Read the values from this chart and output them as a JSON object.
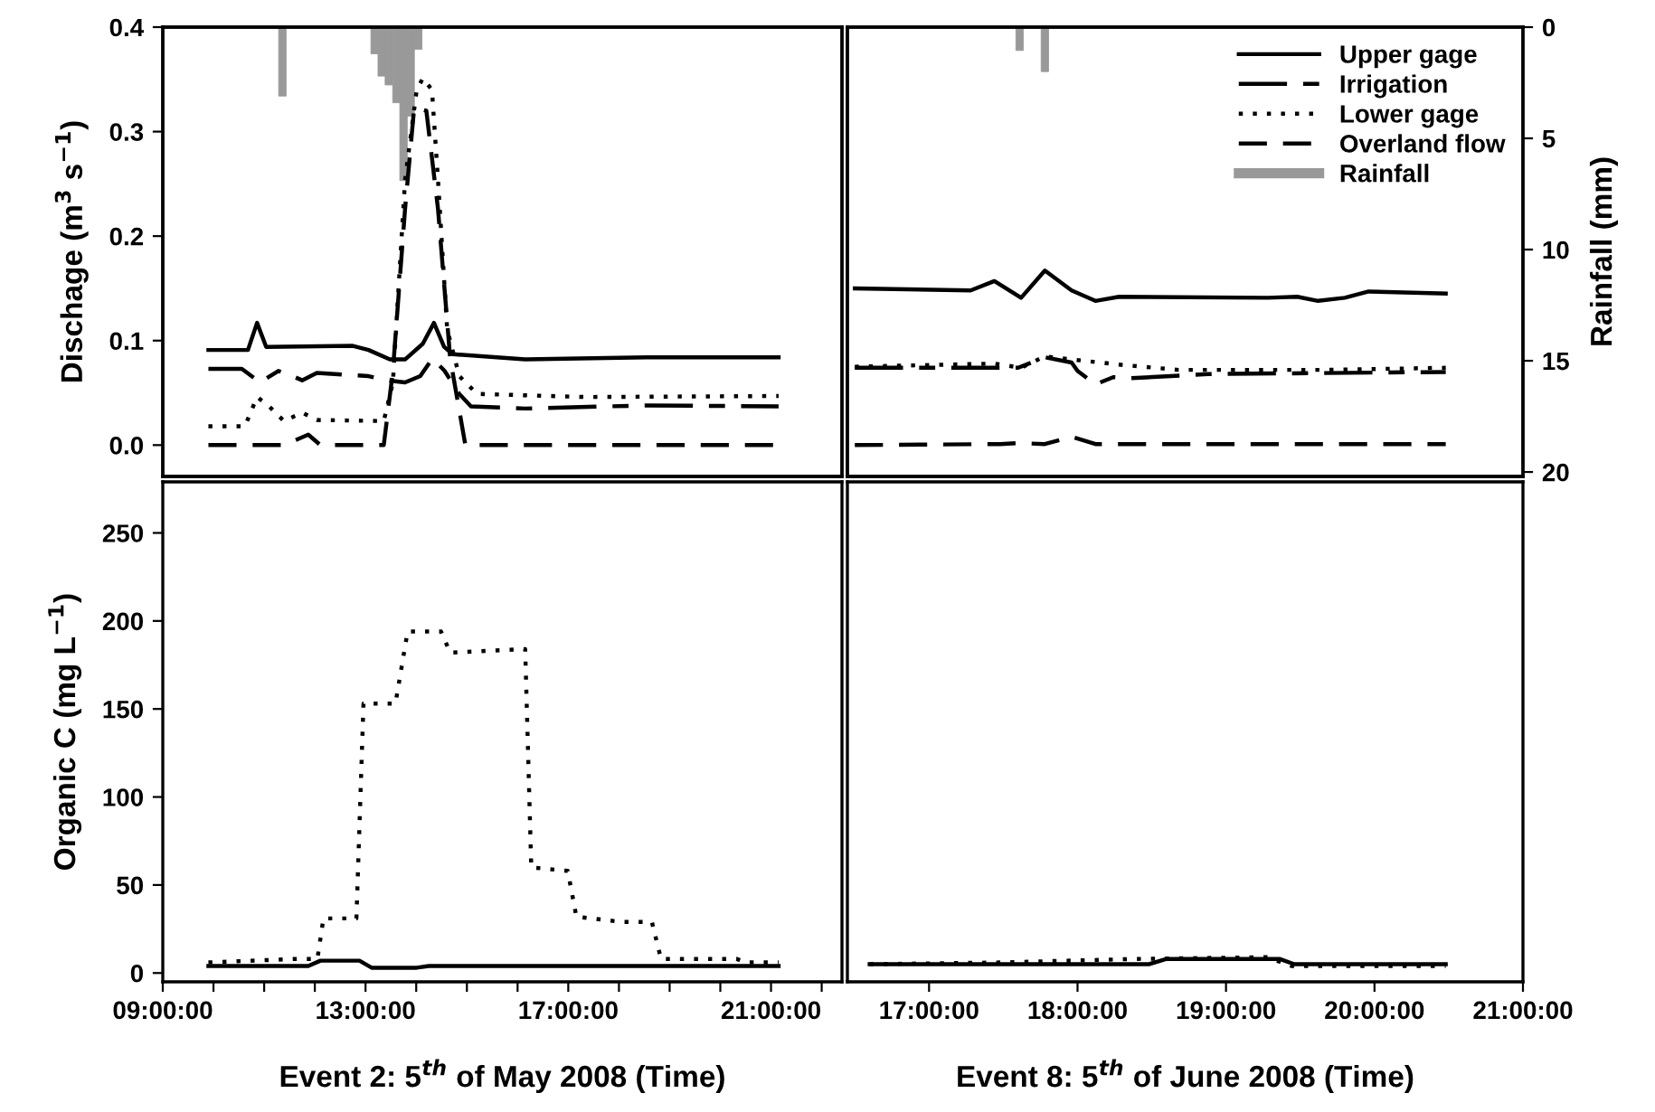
{
  "chart_data": [
    {
      "type": "line",
      "ylabel": "Dischage (m$^{3}$ s$^{−1}$)",
      "xlim": [
        9,
        22.4
      ],
      "ylim": [
        -0.03,
        0.4
      ],
      "yticks": [
        {
          "value": 0,
          "label": "0.0"
        },
        0.1,
        0.2,
        0.3,
        0.4
      ],
      "y2lim": [
        20.2,
        0
      ],
      "tick_labels": "y",
      "legend": false,
      "grid": false,
      "series": [
        {
          "color": "#000000",
          "line_style": "solid",
          "x": [
            9.9,
            10.68,
            10.86,
            11.04,
            12.75,
            13.06,
            13.48,
            13.78,
            14.13,
            14.35,
            14.55,
            14.72,
            16.15,
            18.54,
            21.15
          ],
          "values": [
            0.091,
            0.091,
            0.117,
            0.094,
            0.095,
            0.091,
            0.082,
            0.082,
            0.097,
            0.117,
            0.094,
            0.087,
            0.082,
            0.084,
            0.084
          ]
        },
        {
          "color": "#000000",
          "line_style": "dashdot",
          "x": [
            9.9,
            10.56,
            10.92,
            11.28,
            11.51,
            11.75,
            12.04,
            13.06,
            13.42,
            13.78,
            14.08,
            14.32,
            14.56,
            14.85,
            15.08,
            16.15,
            18.54,
            21.15
          ],
          "values": [
            0.073,
            0.073,
            0.06,
            0.071,
            0.067,
            0.062,
            0.069,
            0.066,
            0.062,
            0.06,
            0.066,
            0.083,
            0.071,
            0.049,
            0.037,
            0.035,
            0.038,
            0.037
          ]
        },
        {
          "color": "#000000",
          "line_style": "dotted",
          "x": [
            9.9,
            10.62,
            10.86,
            11.1,
            11.39,
            11.75,
            12.04,
            13.36,
            13.54,
            13.78,
            14.01,
            14.13,
            14.31,
            14.43,
            14.61,
            14.85,
            15.2,
            17.35,
            21.15
          ],
          "values": [
            0.018,
            0.018,
            0.046,
            0.037,
            0.023,
            0.031,
            0.024,
            0.023,
            0.06,
            0.254,
            0.34,
            0.351,
            0.34,
            0.254,
            0.111,
            0.066,
            0.049,
            0.046,
            0.047
          ]
        },
        {
          "color": "#000000",
          "line_style": "dashed",
          "x": [
            9.9,
            11.39,
            11.87,
            12.11,
            13.36,
            13.54,
            13.78,
            13.96,
            14.2,
            14.43,
            14.67,
            14.97,
            21.15
          ],
          "values": [
            0,
            0,
            0.01,
            0,
            0,
            0.071,
            0.226,
            0.323,
            0.32,
            0.226,
            0.083,
            0,
            0
          ]
        },
        {
          "type": "bar",
          "axis": "y2",
          "color": "#999999",
          "x": [
            11.36,
            13.18,
            13.32,
            13.46,
            13.61,
            13.75,
            13.89,
            14.04
          ],
          "values": [
            3.1,
            1.2,
            2.2,
            2.6,
            3.4,
            6.9,
            4.0,
            1.0
          ]
        }
      ]
    },
    {
      "type": "line",
      "y2label": "Rainfall (mm)",
      "xlim": [
        16.45,
        21
      ],
      "ylim": [
        -0.03,
        0.4
      ],
      "y2lim": [
        20.2,
        0
      ],
      "y2ticks": [
        0,
        5,
        10,
        15,
        20
      ],
      "tick_labels": "y2",
      "legend": "top right",
      "grid": false,
      "series": [
        {
          "name": "Upper gage",
          "color": "#000000",
          "line_style": "solid",
          "x": [
            16.5,
            17.28,
            17.44,
            17.62,
            17.78,
            17.96,
            18.12,
            18.28,
            19.28,
            19.48,
            19.62,
            19.8,
            19.96,
            20.48
          ],
          "values": [
            0.15,
            0.148,
            0.157,
            0.141,
            0.167,
            0.148,
            0.138,
            0.142,
            0.141,
            0.142,
            0.138,
            0.141,
            0.147,
            0.145
          ]
        },
        {
          "name": "Irrigation",
          "color": "#000000",
          "line_style": "dashdot",
          "x": [
            16.5,
            17.6,
            17.78,
            17.96,
            18.0,
            18.12,
            18.24,
            18.36,
            18.88,
            20.48
          ],
          "values": [
            0.074,
            0.074,
            0.084,
            0.079,
            0.071,
            0.058,
            0.065,
            0.064,
            0.068,
            0.07
          ]
        },
        {
          "name": "Lower gage",
          "color": "#000000",
          "line_style": "dotted",
          "x": [
            16.5,
            17.44,
            17.62,
            17.78,
            17.96,
            18.28,
            18.68,
            19.68,
            20.48
          ],
          "values": [
            0.075,
            0.078,
            0.074,
            0.085,
            0.082,
            0.077,
            0.072,
            0.072,
            0.074
          ]
        },
        {
          "name": "Overland flow",
          "color": "#000000",
          "line_style": "dashed",
          "x": [
            16.5,
            17.48,
            17.6,
            17.78,
            17.96,
            18.12,
            20.48
          ],
          "values": [
            0,
            0.001,
            0.002,
            0.001,
            0.008,
            0.001,
            0.001
          ]
        },
        {
          "type": "bar",
          "name": "Rainfall",
          "axis": "y2",
          "color": "#999999",
          "x": [
            17.61,
            17.78
          ],
          "values": [
            1.05,
            2.0
          ]
        }
      ]
    },
    {
      "type": "line",
      "ylabel": "Organic C (mg L$^{−1}$)",
      "xlabel": "Event 2: 5$^{th}$ of May 2008 (Time)",
      "xlim": [
        9,
        22.4
      ],
      "ylim": [
        -5,
        279
      ],
      "yticks": [
        0,
        50,
        100,
        150,
        200,
        250
      ],
      "xticks": [
        {
          "value": 9,
          "label": "09:00:00"
        },
        {
          "value": 10,
          "label": null
        },
        {
          "value": 11,
          "label": null
        },
        {
          "value": 12,
          "label": null
        },
        {
          "value": 13,
          "label": "13:00:00"
        },
        {
          "value": 14,
          "label": null
        },
        {
          "value": 15,
          "label": null
        },
        {
          "value": 16,
          "label": null
        },
        {
          "value": 17,
          "label": "17:00:00"
        },
        {
          "value": 18,
          "label": null
        },
        {
          "value": 19,
          "label": null
        },
        {
          "value": 20,
          "label": null
        },
        {
          "value": 21,
          "label": "21:00:00"
        },
        {
          "value": 22,
          "label": null
        }
      ],
      "legend": false,
      "grid": false,
      "series": [
        {
          "color": "#000000",
          "line_style": "solid",
          "x": [
            9.9,
            11.87,
            12.11,
            12.88,
            13.12,
            14.01,
            14.25,
            21.15
          ],
          "values": [
            4,
            4,
            7,
            7,
            3,
            3,
            4,
            4
          ]
        },
        {
          "color": "#000000",
          "line_style": "dotted",
          "x": [
            9.9,
            11.63,
            12.05,
            12.17,
            12.82,
            12.96,
            13.59,
            13.83,
            14.49,
            14.67,
            16.15,
            16.27,
            16.99,
            17.16,
            18.06,
            18.65,
            18.83,
            20.32,
            20.5,
            21.15
          ],
          "values": [
            6,
            8,
            8,
            31,
            31,
            153,
            153,
            194,
            194,
            182,
            184,
            60,
            58,
            32,
            29,
            29,
            8,
            8,
            6,
            6
          ]
        }
      ]
    },
    {
      "type": "line",
      "xlabel": "Event 8: 5$^{th}$ of June 2008 (Time)",
      "xlim": [
        16.45,
        21
      ],
      "ylim": [
        -5,
        279
      ],
      "xticks": [
        {
          "value": 17,
          "label": "17:00:00"
        },
        {
          "value": 18,
          "label": "18:00:00"
        },
        {
          "value": 19,
          "label": "19:00:00"
        },
        {
          "value": 20,
          "label": "20:00:00"
        },
        {
          "value": 21,
          "label": "21:00:00"
        }
      ],
      "tick_labels": "x",
      "legend": false,
      "grid": false,
      "series": [
        {
          "color": "#000000",
          "line_style": "solid",
          "x": [
            16.6,
            18.48,
            18.6,
            19.36,
            19.46,
            20.48
          ],
          "values": [
            5,
            5,
            8,
            8,
            5,
            5
          ]
        },
        {
          "color": "#000000",
          "line_style": "dotted",
          "x": [
            16.6,
            17.48,
            18.4,
            19.28,
            19.44,
            20.48
          ],
          "values": [
            5,
            6,
            8,
            9,
            4,
            4
          ]
        }
      ]
    }
  ]
}
